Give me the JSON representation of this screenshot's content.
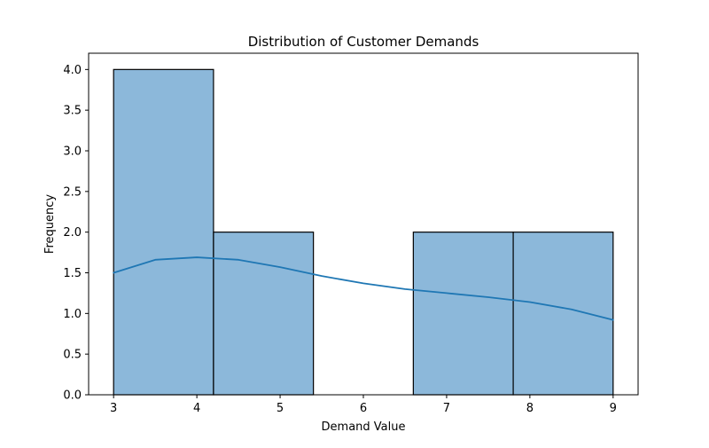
{
  "chart_data": {
    "type": "bar",
    "title": "Distribution of Customer Demands",
    "xlabel": "Demand Value",
    "ylabel": "Frequency",
    "bins": [
      {
        "start": 3.0,
        "end": 4.2,
        "count": 4
      },
      {
        "start": 4.2,
        "end": 5.4,
        "count": 2
      },
      {
        "start": 5.4,
        "end": 6.6,
        "count": 0
      },
      {
        "start": 6.6,
        "end": 7.8,
        "count": 2
      },
      {
        "start": 7.8,
        "end": 9.0,
        "count": 2
      }
    ],
    "kde": {
      "x": [
        3.0,
        3.5,
        4.0,
        4.5,
        5.0,
        5.5,
        6.0,
        6.5,
        7.0,
        7.5,
        8.0,
        8.5,
        9.0
      ],
      "y": [
        1.5,
        1.66,
        1.69,
        1.66,
        1.57,
        1.46,
        1.37,
        1.3,
        1.25,
        1.2,
        1.14,
        1.05,
        0.92
      ]
    },
    "xlim": [
      2.7,
      9.3
    ],
    "ylim": [
      0,
      4.2
    ],
    "x_ticks": [
      3,
      4,
      5,
      6,
      7,
      8,
      9
    ],
    "y_ticks": [
      0.0,
      0.5,
      1.0,
      1.5,
      2.0,
      2.5,
      3.0,
      3.5,
      4.0
    ],
    "grid": false,
    "colors": {
      "bar_fill": "#8cb8da",
      "bar_edge": "#000000",
      "kde_line": "#1f77b4"
    }
  }
}
